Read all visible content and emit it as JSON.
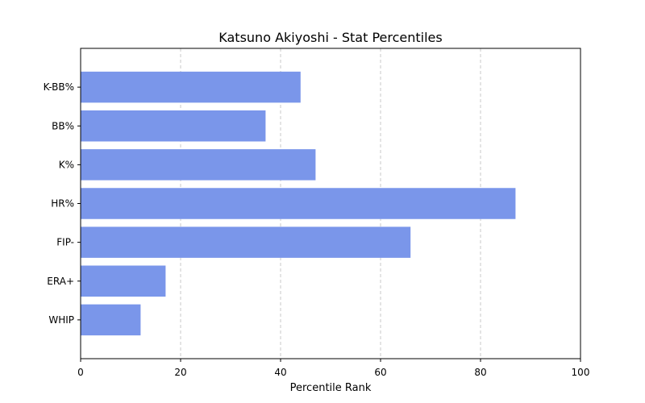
{
  "chart_data": {
    "type": "bar",
    "orientation": "horizontal",
    "title": "Katsuno Akiyoshi - Stat Percentiles",
    "xlabel": "Percentile Rank",
    "ylabel": "",
    "xlim": [
      0,
      100
    ],
    "xticks": [
      0,
      20,
      40,
      60,
      80,
      100
    ],
    "grid": "x-dashed",
    "bar_color": "#7a96ea",
    "categories": [
      "K-BB%",
      "BB%",
      "K%",
      "HR%",
      "FIP-",
      "ERA+",
      "WHIP"
    ],
    "values": [
      44,
      37,
      47,
      87,
      66,
      17,
      12
    ]
  }
}
